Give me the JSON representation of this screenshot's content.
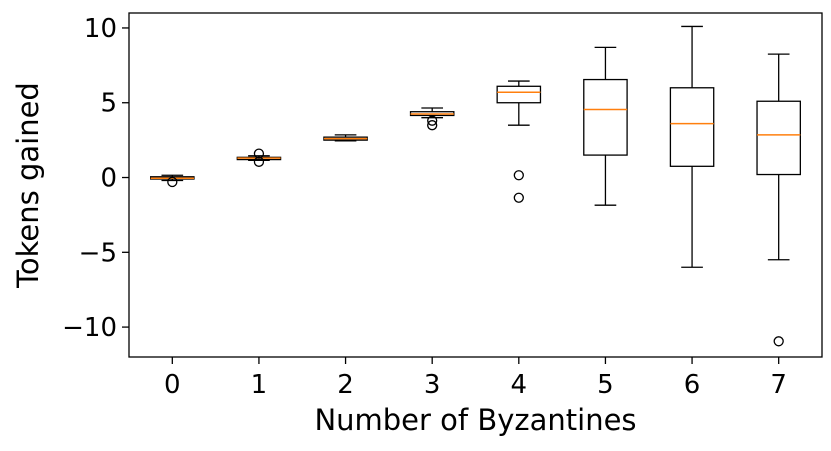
{
  "chart_data": {
    "type": "box",
    "xlabel": "Number of Byzantines",
    "ylabel": "Tokens gained",
    "categories": [
      "0",
      "1",
      "2",
      "3",
      "4",
      "5",
      "6",
      "7"
    ],
    "ylim": [
      -12,
      11
    ],
    "yticks": [
      -10,
      -5,
      0,
      5,
      10
    ],
    "ytick_labels": [
      "−10",
      "−5",
      "0",
      "5",
      "10"
    ],
    "grid": false,
    "colors": {
      "box": "#000000",
      "median": "#ff7f0e",
      "background": "#ffffff"
    },
    "boxes": [
      {
        "category": "0",
        "whisker_low": -0.2,
        "q1": -0.1,
        "median": -0.05,
        "q3": 0.05,
        "whisker_high": 0.15,
        "outliers": [
          -0.3
        ]
      },
      {
        "category": "1",
        "whisker_low": 1.15,
        "q1": 1.2,
        "median": 1.3,
        "q3": 1.35,
        "whisker_high": 1.45,
        "outliers": [
          1.05,
          1.6
        ]
      },
      {
        "category": "2",
        "whisker_low": 2.45,
        "q1": 2.5,
        "median": 2.6,
        "q3": 2.7,
        "whisker_high": 2.85,
        "outliers": []
      },
      {
        "category": "3",
        "whisker_low": 4.0,
        "q1": 4.15,
        "median": 4.25,
        "q3": 4.4,
        "whisker_high": 4.65,
        "outliers": [
          3.5,
          3.8
        ]
      },
      {
        "category": "4",
        "whisker_low": 3.5,
        "q1": 5.0,
        "median": 5.7,
        "q3": 6.1,
        "whisker_high": 6.45,
        "outliers": [
          0.15,
          -1.35
        ]
      },
      {
        "category": "5",
        "whisker_low": -1.85,
        "q1": 1.5,
        "median": 4.55,
        "q3": 6.55,
        "whisker_high": 8.7,
        "outliers": []
      },
      {
        "category": "6",
        "whisker_low": -6.0,
        "q1": 0.75,
        "median": 3.6,
        "q3": 6.0,
        "whisker_high": 10.1,
        "outliers": []
      },
      {
        "category": "7",
        "whisker_low": -5.5,
        "q1": 0.2,
        "median": 2.85,
        "q3": 5.1,
        "whisker_high": 8.25,
        "outliers": [
          -10.95
        ]
      }
    ]
  }
}
